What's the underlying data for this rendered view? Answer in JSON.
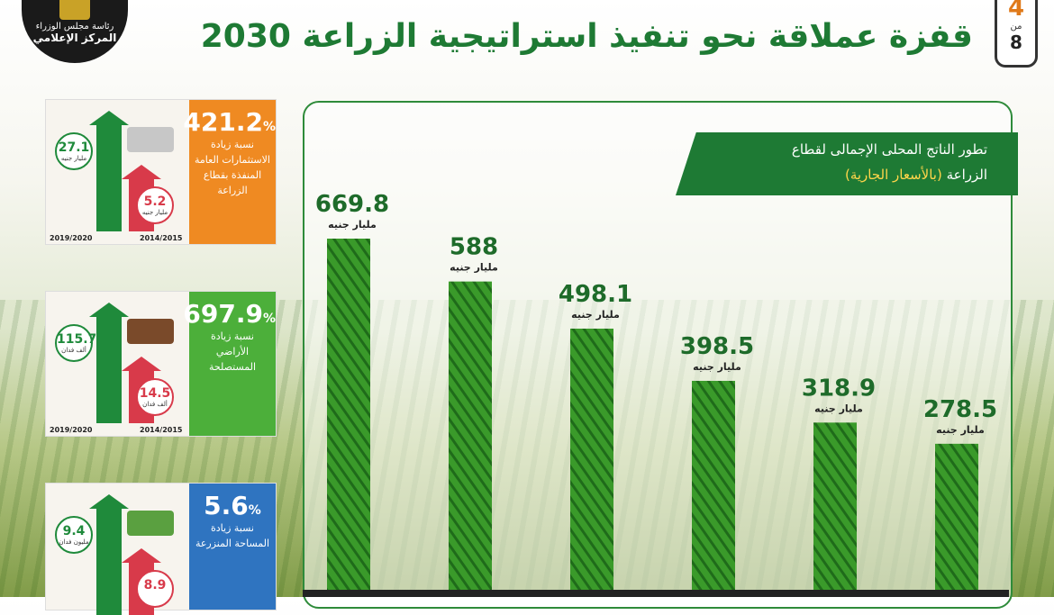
{
  "header": {
    "title": "قفزة عملاقة نحو تنفيذ استراتيجية الزراعة 2030",
    "page_current": "4",
    "page_of": "من",
    "page_total": "8"
  },
  "logo": {
    "line1": "رئاسة مجلس الوزراء",
    "line2": "المركز الإعلامي"
  },
  "chart_title": {
    "line1": "تطور الناتج المحلى الإجمالى لقطاع",
    "line2_prefix": "الزراعة ",
    "line2_highlight": "(بالأسعار الجارية)"
  },
  "chart_data": {
    "type": "bar",
    "title": "تطور الناتج المحلى الإجمالى لقطاع الزراعة (بالأسعار الجارية)",
    "unit": "مليار جنيه",
    "values": [
      669.8,
      588,
      498.1,
      398.5,
      318.9,
      278.5
    ],
    "value_labels": [
      "669.8",
      "588",
      "498.1",
      "398.5",
      "318.9",
      "278.5"
    ],
    "colors": {
      "bar": "#3a9a2a",
      "bar_dark": "#1f6b1a",
      "label": "#1e6b2a"
    }
  },
  "side_cards": [
    {
      "pct": "421.2",
      "pct_sign": "%",
      "desc": "نسبة زيادة الاستثمارات العامة المنفذة بقطاع الزراعة",
      "color": "#ef8a22",
      "new_value": "27.1",
      "new_unit": "مليار جنيه",
      "old_value": "5.2",
      "old_unit": "مليار جنيه",
      "new_year": "2019/2020",
      "old_year": "2014/2015"
    },
    {
      "pct": "697.9",
      "pct_sign": "%",
      "desc": "نسبة زيادة الأراضي المستصلحة",
      "color": "#4caf3a",
      "new_value": "115.7",
      "new_unit": "ألف فدان",
      "old_value": "14.5",
      "old_unit": "ألف فدان",
      "new_year": "2019/2020",
      "old_year": "2014/2015"
    },
    {
      "pct": "5.6",
      "pct_sign": "%",
      "desc": "نسبة زيادة المساحة المنزرعة",
      "color": "#2f74c0",
      "new_value": "9.4",
      "new_unit": "مليون فدان",
      "old_value": "8.9",
      "old_unit": "",
      "new_year": "",
      "old_year": ""
    }
  ]
}
